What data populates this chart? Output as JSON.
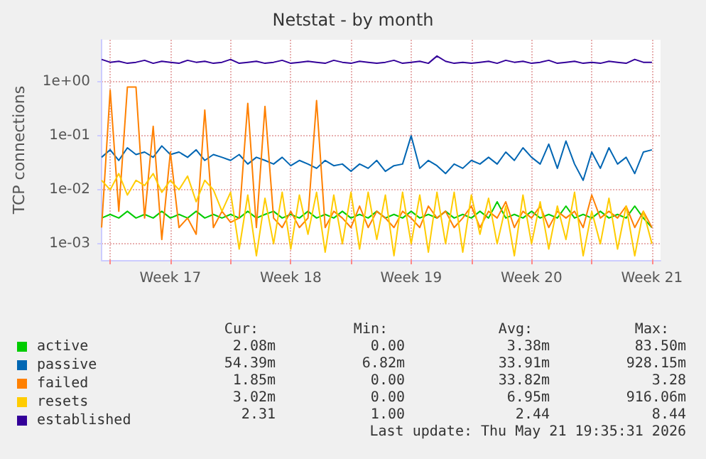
{
  "chart_data": {
    "type": "line",
    "title": "Netstat - by month",
    "ylabel": "TCP connections",
    "log": true,
    "grid": true,
    "legend": "bottom left",
    "xlim": [
      "2026-04-19T12:00",
      "2026-05-22T00:00"
    ],
    "xticks": [
      {
        "value": "2026-04-20",
        "label": null
      },
      {
        "value": "2026-04-23T12:00",
        "label": "Week 17"
      },
      {
        "value": "2026-04-27",
        "label": null
      },
      {
        "value": "2026-04-30T12:00",
        "label": "Week 18"
      },
      {
        "value": "2026-05-04",
        "label": null
      },
      {
        "value": "2026-05-07T12:00",
        "label": "Week 19"
      },
      {
        "value": "2026-05-11",
        "label": null
      },
      {
        "value": "2026-05-14T12:00",
        "label": "Week 20"
      },
      {
        "value": "2026-05-18",
        "label": null
      },
      {
        "value": "2026-05-21T12:00",
        "label": "Week 21"
      }
    ],
    "ylim": [
      0.0005,
      6
    ],
    "yticks": [
      {
        "value": 0.001,
        "label": "1e-03"
      },
      {
        "value": 0.01,
        "label": "1e-02"
      },
      {
        "value": 0.1,
        "label": "1e-01"
      },
      {
        "value": 1,
        "label": "1e+00"
      }
    ],
    "x": [
      "2026-04-19T12:00",
      "2026-04-20T00:00",
      "2026-04-20T12:00",
      "2026-04-21T00:00",
      "2026-04-21T12:00",
      "2026-04-22T00:00",
      "2026-04-22T12:00",
      "2026-04-23T00:00",
      "2026-04-23T12:00",
      "2026-04-24T00:00",
      "2026-04-24T12:00",
      "2026-04-25T00:00",
      "2026-04-25T12:00",
      "2026-04-26T00:00",
      "2026-04-26T12:00",
      "2026-04-27T00:00",
      "2026-04-27T12:00",
      "2026-04-28T00:00",
      "2026-04-28T12:00",
      "2026-04-29T00:00",
      "2026-04-29T12:00",
      "2026-04-30T00:00",
      "2026-04-30T12:00",
      "2026-05-01T00:00",
      "2026-05-01T12:00",
      "2026-05-02T00:00",
      "2026-05-02T12:00",
      "2026-05-03T00:00",
      "2026-05-03T12:00",
      "2026-05-04T00:00",
      "2026-05-04T12:00",
      "2026-05-05T00:00",
      "2026-05-05T12:00",
      "2026-05-06T00:00",
      "2026-05-06T12:00",
      "2026-05-07T00:00",
      "2026-05-07T12:00",
      "2026-05-08T00:00",
      "2026-05-08T12:00",
      "2026-05-09T00:00",
      "2026-05-09T12:00",
      "2026-05-10T00:00",
      "2026-05-10T12:00",
      "2026-05-11T00:00",
      "2026-05-11T12:00",
      "2026-05-12T00:00",
      "2026-05-12T12:00",
      "2026-05-13T00:00",
      "2026-05-13T12:00",
      "2026-05-14T00:00",
      "2026-05-14T12:00",
      "2026-05-15T00:00",
      "2026-05-15T12:00",
      "2026-05-16T00:00",
      "2026-05-16T12:00",
      "2026-05-17T00:00",
      "2026-05-17T12:00",
      "2026-05-18T00:00",
      "2026-05-18T12:00",
      "2026-05-19T00:00",
      "2026-05-19T12:00",
      "2026-05-20T00:00",
      "2026-05-20T12:00",
      "2026-05-21T00:00",
      "2026-05-21T12:00"
    ],
    "series": [
      {
        "name": "active",
        "color": "#00cc00",
        "values": [
          0.003,
          0.0035,
          0.003,
          0.004,
          0.003,
          0.0035,
          0.003,
          0.004,
          0.003,
          0.0035,
          0.003,
          0.004,
          0.003,
          0.0035,
          0.003,
          0.0035,
          0.003,
          0.004,
          0.003,
          0.0035,
          0.004,
          0.003,
          0.0035,
          0.003,
          0.004,
          0.003,
          0.0035,
          0.003,
          0.004,
          0.003,
          0.0035,
          0.003,
          0.004,
          0.003,
          0.0035,
          0.003,
          0.004,
          0.003,
          0.0035,
          0.003,
          0.004,
          0.003,
          0.0035,
          0.003,
          0.004,
          0.003,
          0.006,
          0.003,
          0.0035,
          0.003,
          0.004,
          0.003,
          0.0035,
          0.003,
          0.005,
          0.003,
          0.0035,
          0.003,
          0.004,
          0.003,
          0.0035,
          0.003,
          0.005,
          0.003,
          0.002
        ]
      },
      {
        "name": "passive",
        "color": "#0066b3",
        "values": [
          0.04,
          0.055,
          0.035,
          0.06,
          0.045,
          0.05,
          0.04,
          0.065,
          0.045,
          0.05,
          0.04,
          0.055,
          0.035,
          0.045,
          0.04,
          0.035,
          0.045,
          0.03,
          0.04,
          0.035,
          0.03,
          0.04,
          0.028,
          0.035,
          0.03,
          0.025,
          0.035,
          0.028,
          0.03,
          0.022,
          0.03,
          0.025,
          0.035,
          0.022,
          0.028,
          0.03,
          0.1,
          0.025,
          0.035,
          0.028,
          0.02,
          0.03,
          0.025,
          0.035,
          0.03,
          0.04,
          0.03,
          0.05,
          0.035,
          0.06,
          0.04,
          0.03,
          0.07,
          0.025,
          0.08,
          0.03,
          0.015,
          0.05,
          0.025,
          0.06,
          0.03,
          0.04,
          0.02,
          0.05,
          0.055
        ]
      },
      {
        "name": "failed",
        "color": "#ff8000",
        "values": [
          0.002,
          0.7,
          0.004,
          0.8,
          0.8,
          0.003,
          0.15,
          0.0012,
          0.05,
          0.002,
          0.003,
          0.0015,
          0.3,
          0.002,
          0.004,
          0.0025,
          0.003,
          0.4,
          0.002,
          0.35,
          0.003,
          0.002,
          0.004,
          0.002,
          0.003,
          0.45,
          0.002,
          0.004,
          0.003,
          0.002,
          0.005,
          0.002,
          0.004,
          0.003,
          0.002,
          0.004,
          0.003,
          0.002,
          0.005,
          0.003,
          0.004,
          0.002,
          0.003,
          0.005,
          0.002,
          0.004,
          0.003,
          0.006,
          0.002,
          0.004,
          0.003,
          0.005,
          0.002,
          0.004,
          0.003,
          0.004,
          0.002,
          0.008,
          0.003,
          0.004,
          0.003,
          0.005,
          0.002,
          0.004,
          0.002
        ]
      },
      {
        "name": "resets",
        "color": "#ffcc00",
        "values": [
          0.015,
          0.01,
          0.02,
          0.008,
          0.015,
          0.012,
          0.02,
          0.009,
          0.015,
          0.01,
          0.018,
          0.006,
          0.015,
          0.01,
          0.004,
          0.009,
          0.0008,
          0.008,
          0.0006,
          0.007,
          0.001,
          0.009,
          0.0008,
          0.008,
          0.0015,
          0.009,
          0.0007,
          0.008,
          0.001,
          0.009,
          0.0008,
          0.009,
          0.0012,
          0.008,
          0.0006,
          0.009,
          0.001,
          0.008,
          0.0007,
          0.009,
          0.001,
          0.009,
          0.0007,
          0.008,
          0.0015,
          0.007,
          0.001,
          0.005,
          0.0006,
          0.008,
          0.001,
          0.006,
          0.0008,
          0.005,
          0.0012,
          0.009,
          0.0006,
          0.004,
          0.001,
          0.007,
          0.0008,
          0.005,
          0.0006,
          0.004,
          0.001
        ]
      },
      {
        "name": "established",
        "color": "#330099",
        "values": [
          2.6,
          2.3,
          2.4,
          2.2,
          2.3,
          2.5,
          2.2,
          2.4,
          2.3,
          2.2,
          2.5,
          2.3,
          2.4,
          2.2,
          2.3,
          2.6,
          2.2,
          2.3,
          2.4,
          2.2,
          2.3,
          2.5,
          2.2,
          2.3,
          2.4,
          2.3,
          2.2,
          2.5,
          2.3,
          2.2,
          2.4,
          2.3,
          2.2,
          2.3,
          2.5,
          2.2,
          2.3,
          2.4,
          2.2,
          3.0,
          2.4,
          2.2,
          2.3,
          2.2,
          2.3,
          2.4,
          2.2,
          2.5,
          2.3,
          2.4,
          2.2,
          2.3,
          2.5,
          2.2,
          2.3,
          2.4,
          2.2,
          2.3,
          2.2,
          2.4,
          2.3,
          2.2,
          2.6,
          2.3,
          2.3
        ]
      }
    ],
    "annotations": [
      "Cur:",
      "Min:",
      "Avg:",
      "Max:",
      "2.08m",
      "0.00",
      "3.38m",
      "83.50m",
      "54.39m",
      "6.82m",
      "33.91m",
      "928.15m",
      "1.85m",
      "0.00",
      "33.82m",
      "3.28",
      "3.02m",
      "0.00",
      "6.95m",
      "916.06m",
      "2.31",
      "1.00",
      "2.44",
      "8.44",
      "Last update: Thu May 21 19:35:31 2026"
    ]
  }
}
